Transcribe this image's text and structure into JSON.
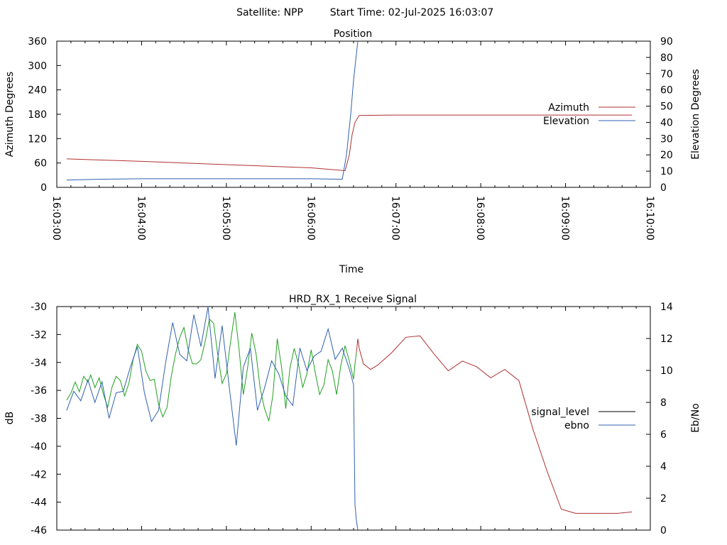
{
  "header": {
    "satellite": "Satellite: NPP",
    "start_time": "Start Time: 02-Jul-2025 16:03:07"
  },
  "colors": {
    "azimuth": "#b03030",
    "elevation": "#3060b0",
    "signal_level": "#000000",
    "ebno": "#3060b0",
    "signal_trace_green": "#20a020"
  },
  "chart_data": [
    {
      "type": "line",
      "title": "Position",
      "xlabel": "Time",
      "ylabel": "Azimuth Degrees",
      "y2label": "Elevation Degrees",
      "x_ticks": [
        "16:03:00",
        "16:04:00",
        "16:05:00",
        "16:06:00",
        "16:07:00",
        "16:08:00",
        "16:09:00",
        "16:10:00"
      ],
      "xlim": [
        "16:03:00",
        "16:10:00"
      ],
      "ylim": [
        0,
        360
      ],
      "y_ticks": [
        0,
        60,
        120,
        180,
        240,
        300,
        360
      ],
      "y2lim": [
        0,
        90
      ],
      "y2_ticks": [
        0,
        10,
        20,
        30,
        40,
        50,
        60,
        70,
        80,
        90
      ],
      "legend_position": "right",
      "series": [
        {
          "name": "Azimuth",
          "axis": "left",
          "x": [
            "16:03:07",
            "16:04:00",
            "16:05:00",
            "16:06:00",
            "16:06:24",
            "16:06:27",
            "16:06:29",
            "16:06:31",
            "16:06:34",
            "16:07:00",
            "16:08:00",
            "16:09:00",
            "16:09:47"
          ],
          "y": [
            70,
            64,
            56,
            48,
            41,
            80,
            130,
            160,
            177,
            178,
            178,
            178,
            178
          ]
        },
        {
          "name": "Elevation",
          "axis": "right",
          "x": [
            "16:03:07",
            "16:03:30",
            "16:04:00",
            "16:05:00",
            "16:06:00",
            "16:06:22",
            "16:06:25",
            "16:06:28",
            "16:06:30",
            "16:06:33"
          ],
          "y": [
            4.5,
            5,
            5.3,
            5.3,
            5.3,
            5,
            20,
            45,
            66,
            90
          ]
        }
      ]
    },
    {
      "type": "line",
      "title": "HRD_RX_1 Receive Signal",
      "xlabel": "",
      "ylabel": "dB",
      "y2label": "Eb/No",
      "xlim": [
        "16:03:00",
        "16:10:00"
      ],
      "ylim": [
        -46,
        -30
      ],
      "y_ticks": [
        -46,
        -44,
        -42,
        -40,
        -38,
        -36,
        -34,
        -32,
        -30
      ],
      "y2lim": [
        0,
        14
      ],
      "y2_ticks": [
        0,
        2,
        4,
        6,
        8,
        10,
        12,
        14
      ],
      "legend_position": "right",
      "series": [
        {
          "name": "signal_level",
          "axis": "left",
          "x": [
            0,
            3,
            6,
            9,
            12,
            15,
            17,
            20,
            23,
            26,
            29,
            32,
            35,
            38,
            41,
            44,
            47,
            50,
            53,
            56,
            59,
            62,
            65,
            68,
            71,
            74,
            77,
            80,
            83,
            86,
            89,
            92,
            95,
            98,
            101,
            104,
            107,
            110,
            113,
            116,
            119,
            122,
            125,
            128,
            131,
            134,
            137,
            140,
            143,
            146,
            149,
            152,
            155,
            158,
            161,
            164,
            167,
            170,
            173,
            176,
            179,
            182,
            185,
            188,
            191,
            194,
            197,
            200,
            203,
            204,
            205,
            206,
            207,
            210,
            215,
            220,
            230,
            240,
            250,
            260,
            270,
            280,
            290,
            300,
            310,
            320,
            330,
            340,
            350,
            360,
            370,
            380,
            390,
            400
          ],
          "y": [
            -36.7,
            -36.2,
            -35.4,
            -36.1,
            -35.0,
            -35.4,
            -34.9,
            -35.8,
            -35.1,
            -36.3,
            -37.2,
            -35.8,
            -35.0,
            -35.3,
            -36.4,
            -35.5,
            -33.8,
            -32.7,
            -33.2,
            -34.6,
            -35.3,
            -35.2,
            -37.0,
            -37.9,
            -37.2,
            -35.0,
            -33.4,
            -32.2,
            -31.5,
            -33.1,
            -34.1,
            -34.1,
            -33.8,
            -32.5,
            -30.9,
            -31.2,
            -33.5,
            -35.5,
            -34.8,
            -32.5,
            -30.4,
            -33.1,
            -36.3,
            -34.4,
            -31.9,
            -33.4,
            -35.9,
            -37.3,
            -38.2,
            -36.3,
            -32.3,
            -34.3,
            -37.3,
            -34.4,
            -33.0,
            -34.1,
            -35.8,
            -34.8,
            -33.1,
            -34.8,
            -36.3,
            -35.6,
            -33.8,
            -34.6,
            -36.3,
            -34.2,
            -32.8,
            -33.9,
            -35.2,
            -34.1,
            -33.3,
            -32.3,
            -33.0,
            -34.1,
            -34.5,
            -34.2,
            -33.3,
            -32.2,
            -32.1,
            -33.4,
            -34.6,
            -33.9,
            -34.3,
            -35.1,
            -34.5,
            -35.3,
            -38.8,
            -41.8,
            -44.5,
            -44.8,
            -44.8,
            -44.8,
            -44.8,
            -44.7
          ],
          "note": "x in seconds from 16:03:07"
        },
        {
          "name": "ebno",
          "axis": "right",
          "x": [
            0,
            5,
            10,
            15,
            20,
            25,
            30,
            35,
            40,
            45,
            50,
            55,
            60,
            65,
            70,
            75,
            80,
            85,
            90,
            95,
            100,
            105,
            110,
            115,
            120,
            125,
            130,
            135,
            140,
            145,
            150,
            155,
            160,
            165,
            170,
            175,
            180,
            185,
            190,
            195,
            200,
            203,
            204,
            205,
            206
          ],
          "y": [
            7.5,
            8.7,
            8.1,
            9.4,
            8.0,
            9.3,
            7.0,
            8.6,
            8.7,
            10.2,
            11.5,
            8.6,
            6.8,
            7.5,
            10.5,
            13.0,
            11.0,
            10.6,
            13.5,
            11.5,
            14.0,
            9.5,
            12.8,
            9.0,
            5.3,
            10.2,
            11.4,
            7.5,
            8.9,
            10.6,
            9.8,
            8.4,
            7.8,
            11.4,
            10.0,
            10.9,
            11.2,
            12.6,
            10.7,
            11.4,
            10.1,
            9.1,
            1.6,
            0.6,
            0.0
          ]
        }
      ]
    }
  ]
}
